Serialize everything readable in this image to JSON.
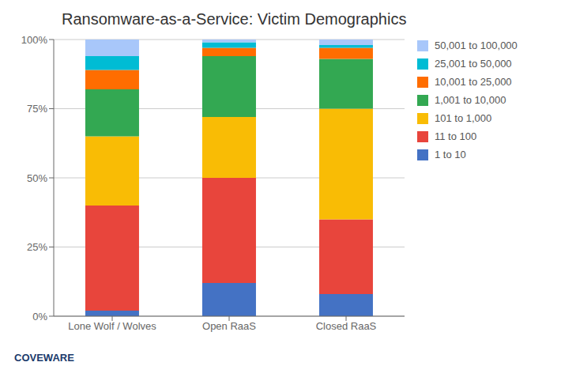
{
  "chart_data": {
    "type": "bar",
    "stacked": true,
    "title": "Ransomware-as-a-Service: Victim Demographics",
    "categories": [
      "Lone Wolf / Wolves",
      "Open RaaS",
      "Closed RaaS"
    ],
    "series": [
      {
        "name": "1 to 10",
        "color": "#4472C4",
        "values": [
          2,
          12,
          8
        ]
      },
      {
        "name": "11 to 100",
        "color": "#E8453C",
        "values": [
          38,
          38,
          27
        ]
      },
      {
        "name": "101 to 1,000",
        "color": "#F9BC05",
        "values": [
          25,
          22,
          40
        ]
      },
      {
        "name": "1,001 to 10,000",
        "color": "#33A852",
        "values": [
          17,
          22,
          18
        ]
      },
      {
        "name": "10,001 to 25,000",
        "color": "#FF6D00",
        "values": [
          7,
          3,
          4
        ]
      },
      {
        "name": "25,001 to 50,000",
        "color": "#00BCD4",
        "values": [
          5,
          2,
          1
        ]
      },
      {
        "name": "50,001 to 100,000",
        "color": "#A8C7FA",
        "values": [
          6,
          1,
          2
        ]
      }
    ],
    "ylim": [
      0,
      100
    ],
    "yticks": [
      {
        "value": 0,
        "label": "0%"
      },
      {
        "value": 25,
        "label": "25%"
      },
      {
        "value": 50,
        "label": "50%"
      },
      {
        "value": 75,
        "label": "75%"
      },
      {
        "value": 100,
        "label": "100%"
      }
    ],
    "grid": true,
    "legend": "right",
    "annotations": [
      {
        "text": "COVEWARE"
      }
    ]
  }
}
